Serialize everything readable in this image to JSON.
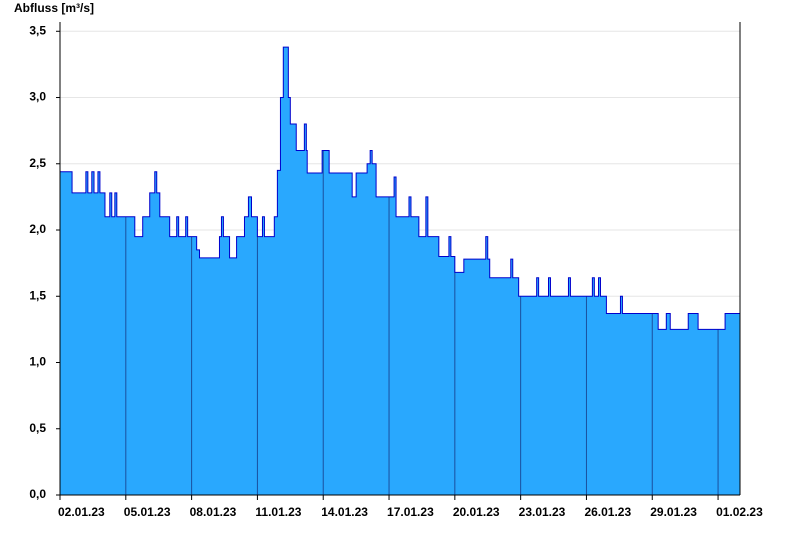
{
  "chart_data": {
    "type": "area",
    "title": "Abfluss [m³/s]",
    "x": [
      0,
      0.55,
      0.55,
      1.18,
      1.18,
      1.27,
      1.27,
      1.45,
      1.45,
      1.55,
      1.55,
      1.73,
      1.73,
      1.82,
      1.82,
      2.05,
      2.05,
      2.27,
      2.27,
      2.36,
      2.36,
      2.5,
      2.5,
      2.59,
      2.59,
      3.41,
      3.41,
      3.77,
      3.77,
      4.09,
      4.09,
      4.32,
      4.32,
      4.41,
      4.41,
      4.55,
      4.55,
      5,
      5,
      5.32,
      5.32,
      5.41,
      5.41,
      5.73,
      5.73,
      5.82,
      5.82,
      6.23,
      6.23,
      6.36,
      6.36,
      7.27,
      7.27,
      7.36,
      7.36,
      7.45,
      7.45,
      7.73,
      7.73,
      8.05,
      8.05,
      8.41,
      8.41,
      8.59,
      8.59,
      8.73,
      8.73,
      9,
      9,
      9.23,
      9.23,
      9.32,
      9.32,
      9.77,
      9.77,
      9.91,
      9.91,
      10.05,
      10.05,
      10.18,
      10.18,
      10.41,
      10.41,
      10.5,
      10.5,
      10.77,
      10.77,
      11.14,
      11.14,
      11.23,
      11.23,
      11.27,
      11.27,
      11.95,
      11.95,
      12.27,
      12.27,
      13.32,
      13.32,
      13.5,
      13.5,
      14,
      14,
      14.14,
      14.14,
      14.23,
      14.23,
      14.41,
      14.41,
      15.23,
      15.23,
      15.32,
      15.32,
      15.91,
      15.91,
      16,
      16,
      16.36,
      16.36,
      16.68,
      16.68,
      16.77,
      16.77,
      17.27,
      17.27,
      17.73,
      17.73,
      17.82,
      17.82,
      18,
      18,
      18.41,
      18.41,
      19.41,
      19.41,
      19.5,
      19.5,
      19.59,
      19.59,
      20.55,
      20.55,
      20.64,
      20.64,
      20.91,
      20.91,
      21.73,
      21.73,
      21.82,
      21.82,
      22.27,
      22.27,
      22.36,
      22.36,
      23.18,
      23.18,
      23.27,
      23.27,
      24.27,
      24.27,
      24.36,
      24.36,
      24.55,
      24.55,
      24.64,
      24.64,
      24.91,
      24.91,
      25.55,
      25.55,
      25.64,
      25.64,
      27.27,
      27.27,
      27.64,
      27.64,
      27.82,
      27.82,
      28.64,
      28.64,
      29.09,
      29.09,
      30.32,
      30.32,
      31
    ],
    "values": [
      2.44,
      2.44,
      2.28,
      2.28,
      2.44,
      2.44,
      2.28,
      2.28,
      2.44,
      2.44,
      2.28,
      2.28,
      2.44,
      2.44,
      2.28,
      2.28,
      2.1,
      2.1,
      2.28,
      2.28,
      2.1,
      2.1,
      2.28,
      2.28,
      2.1,
      2.1,
      1.95,
      1.95,
      2.1,
      2.1,
      2.28,
      2.28,
      2.44,
      2.44,
      2.28,
      2.28,
      2.1,
      2.1,
      1.95,
      1.95,
      2.1,
      2.1,
      1.95,
      1.95,
      2.1,
      2.1,
      1.95,
      1.95,
      1.85,
      1.85,
      1.79,
      1.79,
      1.95,
      1.95,
      2.1,
      2.1,
      1.95,
      1.95,
      1.79,
      1.79,
      1.95,
      1.95,
      2.1,
      2.1,
      2.25,
      2.25,
      2.1,
      2.1,
      1.95,
      1.95,
      2.1,
      2.1,
      1.95,
      1.95,
      2.1,
      2.1,
      2.45,
      2.45,
      3.0,
      3.0,
      3.38,
      3.38,
      3.0,
      3.0,
      2.8,
      2.8,
      2.6,
      2.6,
      2.8,
      2.8,
      2.6,
      2.6,
      2.43,
      2.43,
      2.6,
      2.6,
      2.43,
      2.43,
      2.25,
      2.25,
      2.43,
      2.43,
      2.5,
      2.5,
      2.6,
      2.6,
      2.5,
      2.5,
      2.25,
      2.25,
      2.4,
      2.4,
      2.1,
      2.1,
      2.25,
      2.25,
      2.1,
      2.1,
      1.95,
      1.95,
      2.25,
      2.25,
      1.95,
      1.95,
      1.8,
      1.8,
      1.95,
      1.95,
      1.8,
      1.8,
      1.68,
      1.68,
      1.78,
      1.78,
      1.95,
      1.95,
      1.78,
      1.78,
      1.64,
      1.64,
      1.78,
      1.78,
      1.64,
      1.64,
      1.5,
      1.5,
      1.64,
      1.64,
      1.5,
      1.5,
      1.64,
      1.64,
      1.5,
      1.5,
      1.64,
      1.64,
      1.5,
      1.5,
      1.64,
      1.64,
      1.5,
      1.5,
      1.64,
      1.64,
      1.5,
      1.5,
      1.37,
      1.37,
      1.5,
      1.5,
      1.37,
      1.37,
      1.25,
      1.25,
      1.37,
      1.37,
      1.25,
      1.25,
      1.37,
      1.37,
      1.25,
      1.25,
      1.37,
      1.37
    ],
    "color": "#29a8fe",
    "line_color": "#0000cc",
    "xlim": [
      0,
      31
    ],
    "xticks": [
      {
        "value": 0,
        "label": "02.01.23"
      },
      {
        "value": 3,
        "label": "05.01.23"
      },
      {
        "value": 6,
        "label": "08.01.23"
      },
      {
        "value": 9,
        "label": "11.01.23"
      },
      {
        "value": 12,
        "label": "14.01.23"
      },
      {
        "value": 15,
        "label": "17.01.23"
      },
      {
        "value": 18,
        "label": "20.01.23"
      },
      {
        "value": 21,
        "label": "23.01.23"
      },
      {
        "value": 24,
        "label": "26.01.23"
      },
      {
        "value": 27,
        "label": "29.01.23"
      },
      {
        "value": 30,
        "label": "01.02.23"
      }
    ],
    "ylim": [
      0,
      3.57
    ],
    "yticks": [
      {
        "value": 0,
        "label": "0,0"
      },
      {
        "value": 0.5,
        "label": "0,5"
      },
      {
        "value": 1,
        "label": "1,0"
      },
      {
        "value": 1.5,
        "label": "1,5"
      },
      {
        "value": 2,
        "label": "2,0"
      },
      {
        "value": 2.5,
        "label": "2,5"
      },
      {
        "value": 3,
        "label": "3,0"
      },
      {
        "value": 3.5,
        "label": "3,5"
      }
    ],
    "grid": true
  }
}
